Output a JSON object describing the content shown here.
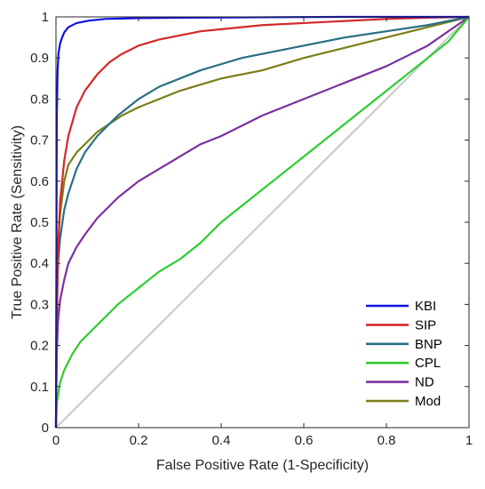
{
  "chart_data": {
    "type": "line",
    "title": "",
    "xlabel": "False Positive Rate (1-Specificity)",
    "ylabel": "True Positive Rate (Sensitivity)",
    "xlim": [
      0,
      1
    ],
    "ylim": [
      0,
      1
    ],
    "xticks": [
      "0",
      "0.2",
      "0.4",
      "0.6",
      "0.8",
      "1"
    ],
    "yticks": [
      "0",
      "0.1",
      "0.2",
      "0.3",
      "0.4",
      "0.5",
      "0.6",
      "0.7",
      "0.8",
      "0.9",
      "1"
    ],
    "grid": false,
    "legend_position": "bottom-right",
    "reference_line": {
      "x": [
        0,
        1
      ],
      "y": [
        0,
        1
      ],
      "color": "#c8c8c8"
    },
    "series": [
      {
        "name": "KBI",
        "color": "#1010e0",
        "x": [
          0,
          0.002,
          0.004,
          0.006,
          0.01,
          0.015,
          0.02,
          0.03,
          0.05,
          0.08,
          0.12,
          0.2,
          0.3,
          0.5,
          0.7,
          1.0
        ],
        "y": [
          0,
          0.75,
          0.87,
          0.91,
          0.935,
          0.95,
          0.962,
          0.975,
          0.985,
          0.991,
          0.995,
          0.997,
          0.998,
          0.999,
          1.0,
          1.0
        ]
      },
      {
        "name": "SIP",
        "color": "#d42828",
        "x": [
          0,
          0.002,
          0.005,
          0.01,
          0.02,
          0.03,
          0.05,
          0.07,
          0.1,
          0.13,
          0.16,
          0.2,
          0.25,
          0.3,
          0.35,
          0.4,
          0.5,
          0.6,
          0.7,
          0.8,
          0.9,
          1.0
        ],
        "y": [
          0,
          0.25,
          0.42,
          0.55,
          0.65,
          0.71,
          0.78,
          0.82,
          0.86,
          0.89,
          0.91,
          0.93,
          0.945,
          0.955,
          0.965,
          0.97,
          0.98,
          0.985,
          0.99,
          0.995,
          0.998,
          1.0
        ]
      },
      {
        "name": "BNP",
        "color": "#2a6f84",
        "x": [
          0,
          0.002,
          0.005,
          0.01,
          0.02,
          0.03,
          0.05,
          0.07,
          0.1,
          0.15,
          0.2,
          0.25,
          0.3,
          0.35,
          0.4,
          0.45,
          0.5,
          0.6,
          0.7,
          0.8,
          0.9,
          1.0
        ],
        "y": [
          0,
          0.3,
          0.4,
          0.46,
          0.53,
          0.57,
          0.63,
          0.67,
          0.71,
          0.76,
          0.8,
          0.83,
          0.85,
          0.87,
          0.885,
          0.9,
          0.91,
          0.93,
          0.95,
          0.965,
          0.98,
          1.0
        ]
      },
      {
        "name": "CPL",
        "color": "#2ecc2e",
        "x": [
          0,
          0.002,
          0.01,
          0.02,
          0.04,
          0.06,
          0.08,
          0.1,
          0.15,
          0.2,
          0.25,
          0.3,
          0.35,
          0.4,
          0.45,
          0.5,
          0.55,
          0.6,
          0.65,
          0.7,
          0.75,
          0.8,
          0.85,
          0.9,
          0.95,
          1.0
        ],
        "y": [
          0,
          0.06,
          0.11,
          0.14,
          0.18,
          0.21,
          0.23,
          0.25,
          0.3,
          0.34,
          0.38,
          0.41,
          0.45,
          0.5,
          0.54,
          0.58,
          0.62,
          0.66,
          0.7,
          0.74,
          0.78,
          0.82,
          0.86,
          0.9,
          0.94,
          1.0
        ]
      },
      {
        "name": "ND",
        "color": "#7a30a0",
        "x": [
          0,
          0.002,
          0.005,
          0.01,
          0.02,
          0.03,
          0.05,
          0.07,
          0.1,
          0.15,
          0.2,
          0.25,
          0.3,
          0.35,
          0.4,
          0.5,
          0.6,
          0.7,
          0.8,
          0.9,
          1.0
        ],
        "y": [
          0,
          0.18,
          0.26,
          0.31,
          0.36,
          0.4,
          0.44,
          0.47,
          0.51,
          0.56,
          0.6,
          0.63,
          0.66,
          0.69,
          0.71,
          0.76,
          0.8,
          0.84,
          0.88,
          0.93,
          1.0
        ]
      },
      {
        "name": "Mod",
        "color": "#7c7c18",
        "x": [
          0,
          0.002,
          0.005,
          0.01,
          0.02,
          0.03,
          0.05,
          0.07,
          0.1,
          0.13,
          0.16,
          0.2,
          0.25,
          0.3,
          0.35,
          0.4,
          0.5,
          0.6,
          0.7,
          0.8,
          0.9,
          1.0
        ],
        "y": [
          0,
          0.36,
          0.45,
          0.52,
          0.6,
          0.64,
          0.67,
          0.69,
          0.72,
          0.74,
          0.76,
          0.78,
          0.8,
          0.82,
          0.835,
          0.85,
          0.87,
          0.9,
          0.925,
          0.95,
          0.975,
          1.0
        ]
      }
    ]
  }
}
